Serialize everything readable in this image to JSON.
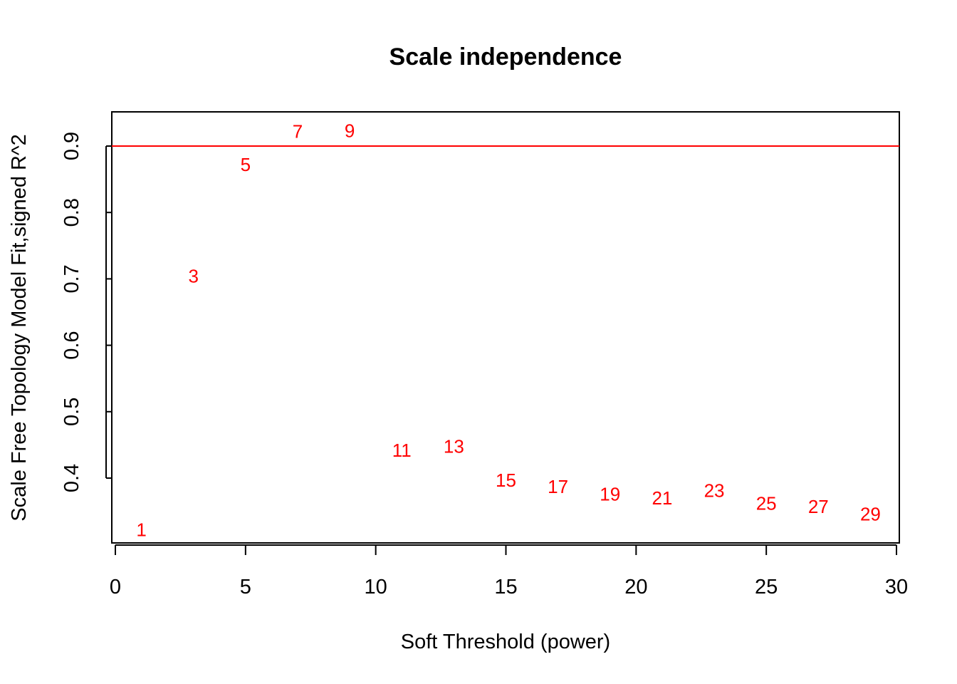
{
  "chart_data": {
    "type": "scatter",
    "title": "Scale independence",
    "xlabel": "Soft Threshold (power)",
    "ylabel": "Scale Free Topology Model Fit,signed R^2",
    "xlim": [
      0,
      30
    ],
    "ylim": [
      0.3,
      0.95
    ],
    "x_ticks": [
      "0",
      "5",
      "10",
      "15",
      "20",
      "25",
      "30"
    ],
    "y_ticks": [
      "0.4",
      "0.5",
      "0.6",
      "0.7",
      "0.8",
      "0.9"
    ],
    "point_color": "#ff0000",
    "reference_line": {
      "y": 0.9,
      "color": "#ff0000"
    },
    "points": [
      {
        "x": 1,
        "y": 0.322,
        "label": "1"
      },
      {
        "x": 3,
        "y": 0.704,
        "label": "3"
      },
      {
        "x": 5,
        "y": 0.872,
        "label": "5"
      },
      {
        "x": 7,
        "y": 0.922,
        "label": "7"
      },
      {
        "x": 9,
        "y": 0.923,
        "label": "9"
      },
      {
        "x": 11,
        "y": 0.442,
        "label": "11"
      },
      {
        "x": 13,
        "y": 0.448,
        "label": "13"
      },
      {
        "x": 15,
        "y": 0.397,
        "label": "15"
      },
      {
        "x": 17,
        "y": 0.387,
        "label": "17"
      },
      {
        "x": 19,
        "y": 0.376,
        "label": "19"
      },
      {
        "x": 21,
        "y": 0.37,
        "label": "21"
      },
      {
        "x": 23,
        "y": 0.381,
        "label": "23"
      },
      {
        "x": 25,
        "y": 0.362,
        "label": "25"
      },
      {
        "x": 27,
        "y": 0.357,
        "label": "27"
      },
      {
        "x": 29,
        "y": 0.346,
        "label": "29"
      }
    ],
    "grid": false,
    "legend": "none"
  }
}
